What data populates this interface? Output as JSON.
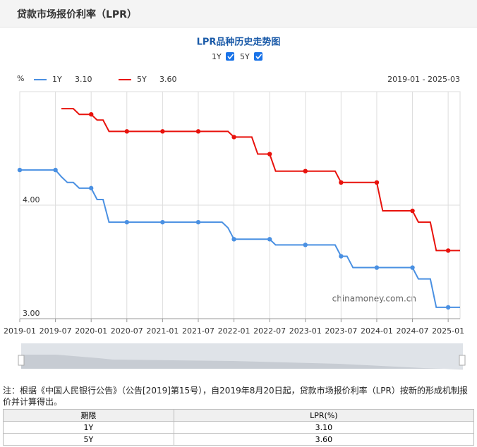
{
  "header": {
    "title": "贷款市场报价利率（LPR）"
  },
  "chart_data": {
    "type": "line",
    "title": "LPR品种历史走势图",
    "unit": "%",
    "range_label": "2019-01 - 2025-03",
    "watermark": "chinamoney.com.cn",
    "categories": [
      "2019-01",
      null,
      null,
      null,
      null,
      null,
      "2019-07",
      null,
      null,
      null,
      null,
      null,
      "2020-01",
      null,
      null,
      null,
      null,
      null,
      "2020-07",
      null,
      null,
      null,
      null,
      null,
      "2021-01",
      null,
      null,
      null,
      null,
      null,
      "2021-07",
      null,
      null,
      null,
      null,
      null,
      "2022-01",
      null,
      null,
      null,
      null,
      null,
      "2022-07",
      null,
      null,
      null,
      null,
      null,
      "2023-01",
      null,
      null,
      null,
      null,
      null,
      "2023-07",
      null,
      null,
      null,
      null,
      null,
      "2024-01",
      null,
      null,
      null,
      null,
      null,
      "2024-07",
      null,
      null,
      null,
      null,
      null,
      "2025-01",
      null,
      null
    ],
    "series": [
      {
        "name": "1Y",
        "color": "#4a90e2",
        "legend_value": "3.10",
        "values": [
          4.31,
          4.31,
          4.31,
          4.31,
          4.31,
          4.31,
          4.31,
          4.25,
          4.2,
          4.2,
          4.15,
          4.15,
          4.15,
          4.05,
          4.05,
          3.85,
          3.85,
          3.85,
          3.85,
          3.85,
          3.85,
          3.85,
          3.85,
          3.85,
          3.85,
          3.85,
          3.85,
          3.85,
          3.85,
          3.85,
          3.85,
          3.85,
          3.85,
          3.85,
          3.85,
          3.8,
          3.7,
          3.7,
          3.7,
          3.7,
          3.7,
          3.7,
          3.7,
          3.65,
          3.65,
          3.65,
          3.65,
          3.65,
          3.65,
          3.65,
          3.65,
          3.65,
          3.65,
          3.65,
          3.55,
          3.55,
          3.45,
          3.45,
          3.45,
          3.45,
          3.45,
          3.45,
          3.45,
          3.45,
          3.45,
          3.45,
          3.45,
          3.35,
          3.35,
          3.35,
          3.1,
          3.1,
          3.1,
          3.1,
          3.1
        ]
      },
      {
        "name": "5Y",
        "color": "#e8120c",
        "legend_value": "3.60",
        "values": [
          null,
          null,
          null,
          null,
          null,
          null,
          null,
          4.85,
          4.85,
          4.85,
          4.8,
          4.8,
          4.8,
          4.75,
          4.75,
          4.65,
          4.65,
          4.65,
          4.65,
          4.65,
          4.65,
          4.65,
          4.65,
          4.65,
          4.65,
          4.65,
          4.65,
          4.65,
          4.65,
          4.65,
          4.65,
          4.65,
          4.65,
          4.65,
          4.65,
          4.65,
          4.6,
          4.6,
          4.6,
          4.6,
          4.45,
          4.45,
          4.45,
          4.3,
          4.3,
          4.3,
          4.3,
          4.3,
          4.3,
          4.3,
          4.3,
          4.3,
          4.3,
          4.3,
          4.2,
          4.2,
          4.2,
          4.2,
          4.2,
          4.2,
          4.2,
          3.95,
          3.95,
          3.95,
          3.95,
          3.95,
          3.95,
          3.85,
          3.85,
          3.85,
          3.6,
          3.6,
          3.6,
          3.6,
          3.6
        ]
      }
    ],
    "ylim": [
      3,
      5
    ],
    "yticks": [
      {
        "value": 3,
        "label": "3.00"
      },
      {
        "value": 4,
        "label": "4.00"
      }
    ],
    "grid": true
  },
  "note": "注：根据《中国人民银行公告》（公告[2019]第15号），自2019年8月20日起，贷款市场报价利率（LPR）按新的形成机制报价并计算得出。",
  "table": {
    "header": [
      "期限",
      "LPR(%)"
    ],
    "rows": [
      [
        "1Y",
        "3.10"
      ],
      [
        "5Y",
        "3.60"
      ]
    ]
  }
}
